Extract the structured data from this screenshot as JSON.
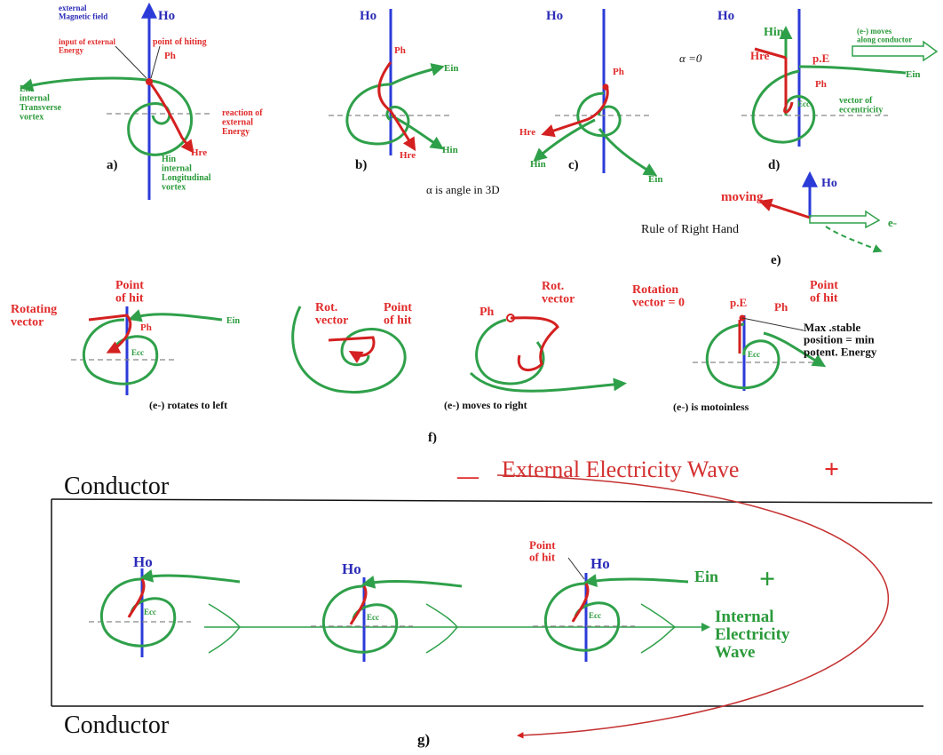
{
  "colors": {
    "blue": "#2b3bd8",
    "red": "#d42020",
    "green": "#2fa04a"
  },
  "panel_a": {
    "ho": "Ho",
    "ext_field": "external\nMagnetic field",
    "input_energy": "input of external\nEnergy",
    "point_hit": "point of hiting",
    "ph": "Ph",
    "ein": "Ein\ninternal\nTransverse\nvortex",
    "reaction": "reaction of\nexternal\nEnergy",
    "hre": "Hre",
    "hin": "Hin\ninternal\nLongitudinal\nvortex",
    "label": "a)"
  },
  "panel_b": {
    "ho": "Ho",
    "ph": "Ph",
    "ein": "Ein",
    "hin": "Hin",
    "hre": "Hre",
    "label": "b)"
  },
  "panel_c": {
    "ho": "Ho",
    "ph": "Ph",
    "hre": "Hre",
    "hin": "Hin",
    "ein": "Ein",
    "label": "c)"
  },
  "panel_d": {
    "ho": "Ho",
    "hin": "Hin",
    "alpha0": "α =0",
    "hre": "Hre",
    "pe": "p.E",
    "ph": "Ph",
    "moves": "(e-) moves\nalong conductor",
    "ein": "Ein",
    "ecc": "Ecc",
    "vector_ecc": "vector of\neccentricity",
    "label": "d)"
  },
  "angle_note": "α is angle in 3D",
  "panel_e": {
    "ho": "Ho",
    "moving": "moving",
    "e": "e-",
    "rule": "Rule of Right Hand",
    "label": "e)"
  },
  "panel_f": {
    "f1": {
      "rot": "Rotating\nvector",
      "hit": "Point\nof hit",
      "ph": "Ph",
      "ein": "Ein",
      "ecc": "Ecc",
      "caption": "(e-) rotates to left"
    },
    "f2": {
      "rot": "Rot.\nvector",
      "hit": "Point\nof hit"
    },
    "f3": {
      "ph": "Ph",
      "rot": "Rot.\nvector",
      "caption": "(e-) moves to right"
    },
    "f4": {
      "rot": "Rotation\nvector = 0",
      "pe": "p.E",
      "ph": "Ph",
      "hit": "Point\nof hit",
      "max": "Max .stable\nposition  = min\npotent. Energy",
      "ecc": "Ecc",
      "caption": "(e-) is motoinless"
    },
    "label": "f)"
  },
  "panel_g": {
    "conductor_top": "Conductor",
    "conductor_bottom": "Conductor",
    "minus": "—",
    "ext_wave": "External Electricity Wave",
    "plus": "+",
    "ho": "Ho",
    "ecc": "Ecc",
    "point_hit": "Point\nof hit",
    "ein": "Ein",
    "green_plus": "+",
    "int_wave": "Internal\nElectricity\nWave",
    "label": "g)"
  }
}
